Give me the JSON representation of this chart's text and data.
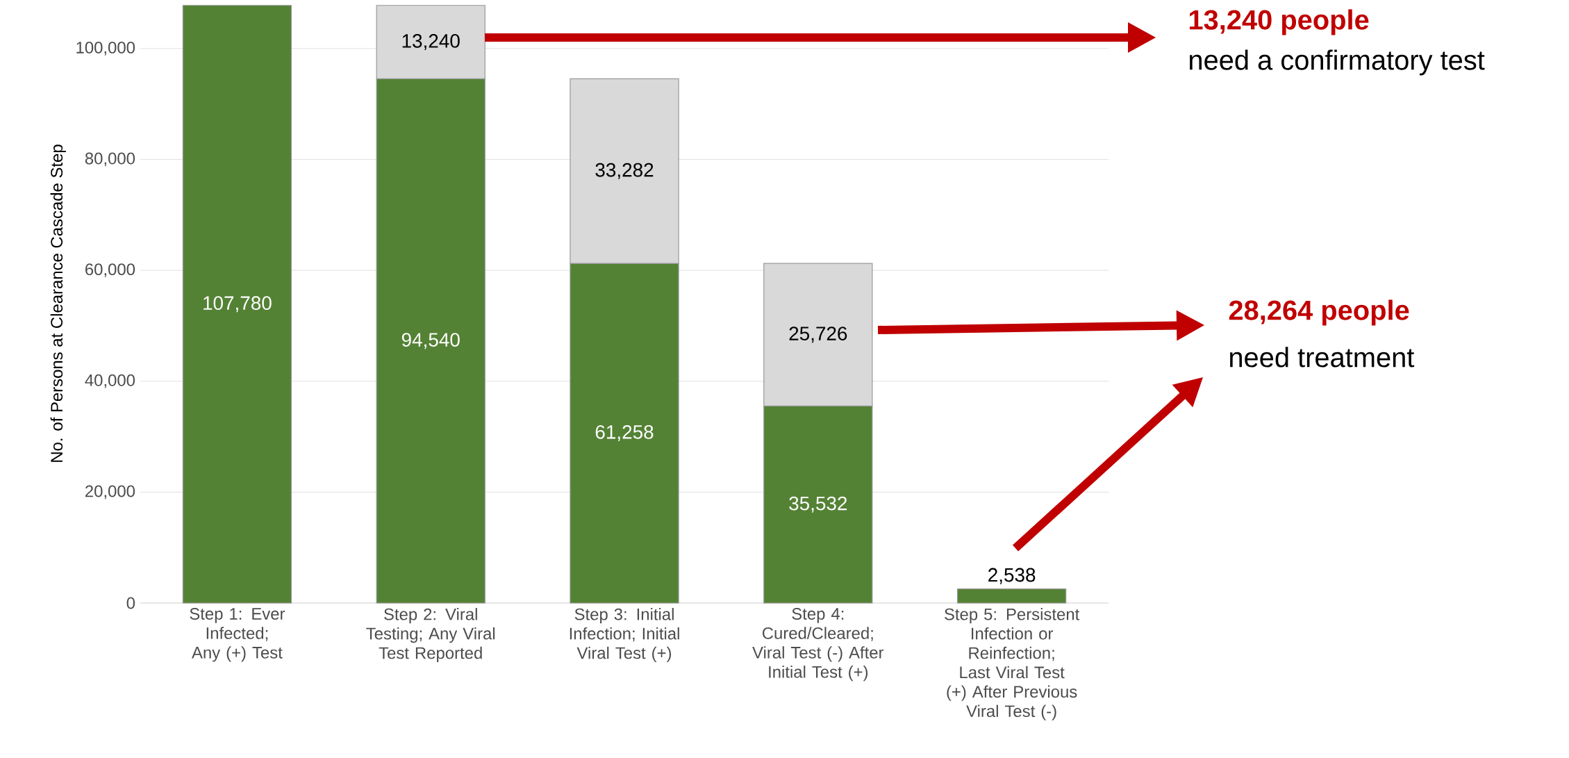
{
  "chart_data": {
    "type": "bar",
    "stacked": true,
    "ylabel": "No. of Persons at Clearance Cascade Step",
    "categories": [
      "Step 1: Ever Infected; Any (+) Test",
      "Step 2: Viral Testing; Any Viral Test Reported",
      "Step 3: Initial Infection; Initial Viral Test (+)",
      "Step 4: Cured/Cleared; Viral Test (-) After Initial Test (+)",
      "Step 5: Persistent Infection or Reinfection; Last Viral Test (+) After Previous Viral Test (-)"
    ],
    "series": [
      {
        "color": "#548235",
        "values": [
          107780,
          94540,
          61258,
          35532,
          2538
        ],
        "value_labels": [
          "107,780",
          "94,540",
          "61,258",
          "35,532",
          "2,538"
        ]
      },
      {
        "color": "#d9d9d9",
        "values": [
          null,
          13240,
          33282,
          25726,
          null
        ],
        "value_labels": [
          null,
          "13,240",
          "33,282",
          "25,726",
          null
        ]
      }
    ],
    "ylim": [
      0,
      108000
    ],
    "yticks": [
      {
        "value": 0,
        "label": "0"
      },
      {
        "value": 20000,
        "label": "20,000"
      },
      {
        "value": 40000,
        "label": "40,000"
      },
      {
        "value": 60000,
        "label": "60,000"
      },
      {
        "value": 80000,
        "label": "80,000"
      },
      {
        "value": 100000,
        "label": "100,000"
      }
    ],
    "grid": "y",
    "annotations": [
      "13,240 people",
      "need a confirmatory test",
      "28,264 people",
      "need treatment"
    ]
  }
}
